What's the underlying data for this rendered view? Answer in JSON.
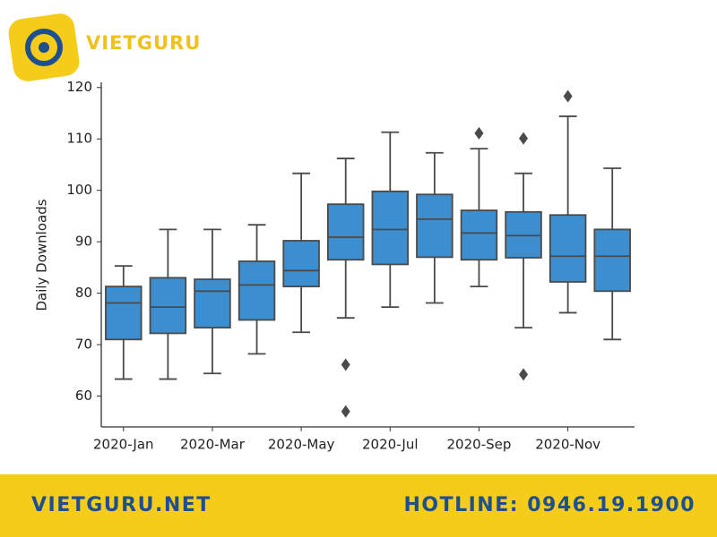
{
  "branding": {
    "logo_text": "VIETGURU",
    "website": "VIETGURU.NET",
    "hotline": "HOTLINE: 0946.19.1900"
  },
  "chart_data": {
    "type": "box",
    "ylabel": "Daily Downloads",
    "categories": [
      "2020-Jan",
      null,
      "2020-Mar",
      null,
      "2020-May",
      null,
      "2020-Jul",
      null,
      "2020-Sep",
      null,
      "2020-Nov",
      null
    ],
    "boxes": [
      {
        "low": 63.3,
        "q1": 71.0,
        "median": 78.1,
        "q3": 81.3,
        "high": 85.3,
        "outliers": []
      },
      {
        "low": 63.3,
        "q1": 72.2,
        "median": 77.3,
        "q3": 83.0,
        "high": 92.4,
        "outliers": []
      },
      {
        "low": 64.4,
        "q1": 73.3,
        "median": 80.4,
        "q3": 82.7,
        "high": 92.4,
        "outliers": []
      },
      {
        "low": 68.2,
        "q1": 74.8,
        "median": 81.6,
        "q3": 86.2,
        "high": 93.3,
        "outliers": []
      },
      {
        "low": 72.4,
        "q1": 81.3,
        "median": 84.4,
        "q3": 90.2,
        "high": 103.3,
        "outliers": []
      },
      {
        "low": 75.2,
        "q1": 86.5,
        "median": 90.9,
        "q3": 97.3,
        "high": 106.2,
        "outliers": [
          66.1,
          57.0
        ]
      },
      {
        "low": 77.3,
        "q1": 85.6,
        "median": 92.4,
        "q3": 99.8,
        "high": 111.3,
        "outliers": []
      },
      {
        "low": 78.1,
        "q1": 87.0,
        "median": 94.4,
        "q3": 99.2,
        "high": 107.3,
        "outliers": []
      },
      {
        "low": 81.3,
        "q1": 86.5,
        "median": 91.7,
        "q3": 96.1,
        "high": 108.1,
        "outliers": [
          111.1
        ]
      },
      {
        "low": 73.3,
        "q1": 86.9,
        "median": 91.2,
        "q3": 95.8,
        "high": 103.3,
        "outliers": [
          110.1,
          64.2
        ]
      },
      {
        "low": 76.2,
        "q1": 82.2,
        "median": 87.2,
        "q3": 95.2,
        "high": 114.4,
        "outliers": [
          118.3
        ]
      },
      {
        "low": 71.0,
        "q1": 80.4,
        "median": 87.2,
        "q3": 92.4,
        "high": 104.3,
        "outliers": []
      }
    ],
    "color": "#3d8ecf",
    "line_color": "#4a4a4a",
    "ylim": [
      54,
      121
    ],
    "yticks": [
      60,
      70,
      80,
      90,
      100,
      110,
      120
    ]
  }
}
